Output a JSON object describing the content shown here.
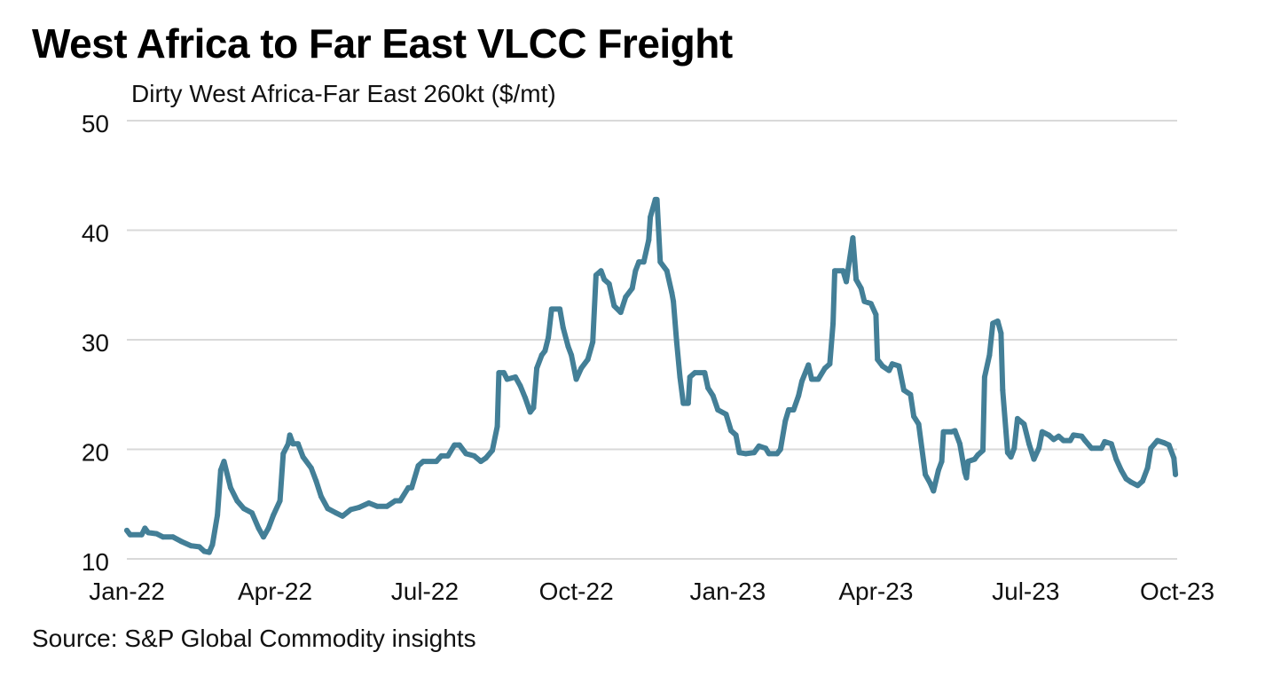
{
  "header": {
    "title": "West Africa to Far East VLCC Freight",
    "subtitle": "Dirty West Africa-Far East 260kt ($/mt)"
  },
  "footer": {
    "source": "Source: S&P Global Commodity insights"
  },
  "colors": {
    "line": "#437f97",
    "grid": "#d9d9d9",
    "text": "#111111"
  },
  "chart_data": {
    "type": "line",
    "title": "West Africa to Far East VLCC Freight",
    "subtitle": "Dirty West Africa-Far East 260kt ($/mt)",
    "xlabel": "",
    "ylabel": "Dirty West Africa-Far East 260kt ($/mt)",
    "ylim": [
      10,
      50
    ],
    "yticks": [
      10,
      20,
      30,
      40,
      50
    ],
    "xlim_days": [
      0,
      638
    ],
    "x_origin": "2022-01-01",
    "xticks": [
      {
        "label": "Jan-22",
        "day": 0
      },
      {
        "label": "Apr-22",
        "day": 90
      },
      {
        "label": "Jul-22",
        "day": 181
      },
      {
        "label": "Oct-22",
        "day": 273
      },
      {
        "label": "Jan-23",
        "day": 365
      },
      {
        "label": "Apr-23",
        "day": 455
      },
      {
        "label": "Jul-23",
        "day": 546
      },
      {
        "label": "Oct-23",
        "day": 638
      }
    ],
    "grid": true,
    "legend": "none",
    "series": [
      {
        "name": "Dirty West Africa-Far East 260kt ($/mt)",
        "x_days": [
          0,
          2,
          9,
          11,
          13,
          18,
          22,
          28,
          33,
          39,
          44,
          47,
          50,
          52,
          55,
          57,
          59,
          61,
          63,
          67,
          71,
          76,
          80,
          83,
          86,
          89,
          93,
          95,
          98,
          99,
          101,
          104,
          107,
          112,
          115,
          118,
          122,
          127,
          131,
          136,
          141,
          147,
          152,
          158,
          163,
          166,
          171,
          173,
          177,
          180,
          188,
          191,
          195,
          199,
          202,
          206,
          211,
          215,
          218,
          222,
          225,
          226,
          229,
          231,
          236,
          239,
          242,
          245,
          247,
          249,
          252,
          254,
          256,
          258,
          263,
          265,
          268,
          270,
          273,
          276,
          280,
          283,
          285,
          288,
          290,
          293,
          296,
          300,
          303,
          307,
          309,
          311,
          314,
          317,
          318,
          321,
          322,
          324,
          328,
          331,
          332,
          334,
          336,
          338,
          341,
          342,
          345,
          351,
          353,
          356,
          359,
          364,
          367,
          370,
          372,
          376,
          381,
          384,
          388,
          390,
          395,
          397,
          400,
          402,
          405,
          408,
          410,
          414,
          416,
          420,
          424,
          427,
          429,
          430,
          435,
          437,
          441,
          443,
          446,
          448,
          452,
          455,
          456,
          459,
          463,
          465,
          469,
          472,
          476,
          478,
          481,
          485,
          488,
          490,
          493,
          495,
          496,
          501,
          503,
          506,
          509,
          510,
          511,
          515,
          517,
          520,
          521,
          524,
          526,
          529,
          531,
          532,
          535,
          537,
          539,
          541,
          545,
          548,
          551,
          554,
          556,
          560,
          563,
          566,
          569,
          573,
          575,
          580,
          582,
          586,
          592,
          594,
          598,
          601,
          604,
          607,
          610,
          614,
          617,
          620,
          622,
          626,
          630,
          633,
          636,
          637
        ],
        "values": [
          12.6,
          12.2,
          12.2,
          12.8,
          12.4,
          12.3,
          12.0,
          12.0,
          11.6,
          11.2,
          11.1,
          10.7,
          10.6,
          11.3,
          14.0,
          18.1,
          18.9,
          17.7,
          16.5,
          15.3,
          14.6,
          14.2,
          12.8,
          12.0,
          12.8,
          14.0,
          15.3,
          19.6,
          20.5,
          21.3,
          20.5,
          20.5,
          19.3,
          18.3,
          17.1,
          15.7,
          14.6,
          14.2,
          13.9,
          14.5,
          14.7,
          15.1,
          14.8,
          14.8,
          15.3,
          15.3,
          16.5,
          16.5,
          18.5,
          18.9,
          18.9,
          19.4,
          19.4,
          20.4,
          20.4,
          19.6,
          19.4,
          18.9,
          19.2,
          19.9,
          22.1,
          27.0,
          27.0,
          26.4,
          26.6,
          25.8,
          24.7,
          23.4,
          23.8,
          27.4,
          28.6,
          29.0,
          30.2,
          32.8,
          32.8,
          31.1,
          29.4,
          28.6,
          26.4,
          27.4,
          28.2,
          29.8,
          35.9,
          36.3,
          35.5,
          35.1,
          33.1,
          32.5,
          33.9,
          34.7,
          36.3,
          37.1,
          37.1,
          39.1,
          41.2,
          42.8,
          42.8,
          37.1,
          36.3,
          34.3,
          33.5,
          29.8,
          26.6,
          24.2,
          24.2,
          26.6,
          27.0,
          27.0,
          25.6,
          24.9,
          23.6,
          23.2,
          21.7,
          21.3,
          19.7,
          19.6,
          19.7,
          20.3,
          20.1,
          19.6,
          19.6,
          20.0,
          22.6,
          23.6,
          23.6,
          24.9,
          26.2,
          27.7,
          26.4,
          26.4,
          27.4,
          27.8,
          31.5,
          36.3,
          36.3,
          35.3,
          39.3,
          35.5,
          34.7,
          33.5,
          33.3,
          32.3,
          28.2,
          27.6,
          27.2,
          27.8,
          27.6,
          25.4,
          25.0,
          23.0,
          22.3,
          17.7,
          16.9,
          16.2,
          18.1,
          18.9,
          21.6,
          21.6,
          21.7,
          20.5,
          17.9,
          17.4,
          18.9,
          19.1,
          19.5,
          19.9,
          26.6,
          28.6,
          31.5,
          31.7,
          30.6,
          25.4,
          19.7,
          19.3,
          20.1,
          22.8,
          22.3,
          20.5,
          19.1,
          20.1,
          21.6,
          21.3,
          20.9,
          21.2,
          20.8,
          20.8,
          21.3,
          21.2,
          20.8,
          20.1,
          20.1,
          20.7,
          20.5,
          19.1,
          18.1,
          17.3,
          17.0,
          16.7,
          17.1,
          18.3,
          20.1,
          20.8,
          20.6,
          20.4,
          19.2,
          17.7
        ]
      }
    ]
  }
}
